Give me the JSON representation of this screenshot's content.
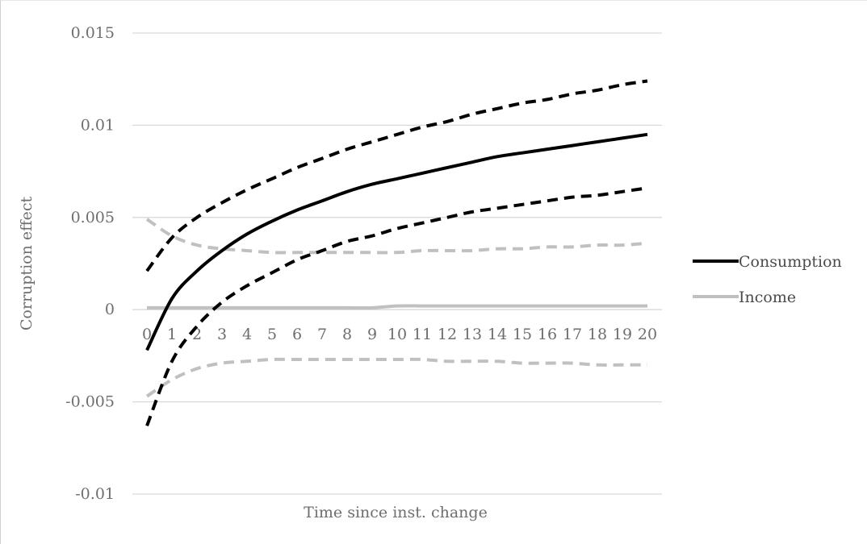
{
  "chart_data": {
    "type": "line",
    "title": "",
    "xlabel": "Time since inst. change",
    "ylabel": "Corruption effect",
    "x": [
      0,
      1,
      2,
      3,
      4,
      5,
      6,
      7,
      8,
      9,
      10,
      11,
      12,
      13,
      14,
      15,
      16,
      17,
      18,
      19,
      20
    ],
    "xtick_labels": [
      "0",
      "1",
      "2",
      "3",
      "4",
      "5",
      "6",
      "7",
      "8",
      "9",
      "10",
      "11",
      "12",
      "13",
      "14",
      "15",
      "16",
      "17",
      "18",
      "19",
      "20"
    ],
    "ylim": [
      -0.01,
      0.015
    ],
    "yticks": [
      -0.01,
      -0.005,
      0,
      0.005,
      0.01,
      0.015
    ],
    "ytick_labels": [
      "-0.01",
      "-0.005",
      "0",
      "0.005",
      "0.01",
      "0.015"
    ],
    "grid": "horizontal",
    "legend_position": "right",
    "series": [
      {
        "name": "Consumption",
        "color": "#000000",
        "style": "solid",
        "values": [
          -0.0022,
          0.0006,
          0.0021,
          0.0032,
          0.0041,
          0.0048,
          0.0054,
          0.0059,
          0.0064,
          0.0068,
          0.0071,
          0.0074,
          0.0077,
          0.008,
          0.0083,
          0.0085,
          0.0087,
          0.0089,
          0.0091,
          0.0093,
          0.0095
        ]
      },
      {
        "name": "Income",
        "color": "#c0c0c0",
        "style": "solid",
        "values": [
          0.0001,
          0.0001,
          0.0001,
          0.0001,
          0.0001,
          0.0001,
          0.0001,
          0.0001,
          0.0001,
          0.0001,
          0.0002,
          0.0002,
          0.0002,
          0.0002,
          0.0002,
          0.0002,
          0.0002,
          0.0002,
          0.0002,
          0.0002,
          0.0002
        ]
      },
      {
        "color": "#000000",
        "style": "dashed",
        "values": [
          0.0021,
          0.0039,
          0.005,
          0.0058,
          0.0065,
          0.0071,
          0.0077,
          0.0082,
          0.0087,
          0.0091,
          0.0095,
          0.0099,
          0.0102,
          0.0106,
          0.0109,
          0.0112,
          0.0114,
          0.0117,
          0.0119,
          0.0122,
          0.0124
        ]
      },
      {
        "color": "#000000",
        "style": "dashed",
        "values": [
          -0.0063,
          -0.0028,
          -0.0009,
          0.0004,
          0.0013,
          0.002,
          0.0027,
          0.0032,
          0.0037,
          0.004,
          0.0044,
          0.0047,
          0.005,
          0.0053,
          0.0055,
          0.0057,
          0.0059,
          0.0061,
          0.0062,
          0.0064,
          0.0066
        ]
      },
      {
        "color": "#c0c0c0",
        "style": "dashed",
        "values": [
          0.0049,
          0.004,
          0.0035,
          0.0033,
          0.0032,
          0.0031,
          0.0031,
          0.0031,
          0.0031,
          0.0031,
          0.0031,
          0.0032,
          0.0032,
          0.0032,
          0.0033,
          0.0033,
          0.0034,
          0.0034,
          0.0035,
          0.0035,
          0.0036
        ]
      },
      {
        "color": "#c0c0c0",
        "style": "dashed",
        "values": [
          -0.0047,
          -0.0038,
          -0.0032,
          -0.0029,
          -0.0028,
          -0.0027,
          -0.0027,
          -0.0027,
          -0.0027,
          -0.0027,
          -0.0027,
          -0.0027,
          -0.0028,
          -0.0028,
          -0.0028,
          -0.0029,
          -0.0029,
          -0.0029,
          -0.003,
          -0.003,
          -0.003
        ]
      }
    ]
  }
}
